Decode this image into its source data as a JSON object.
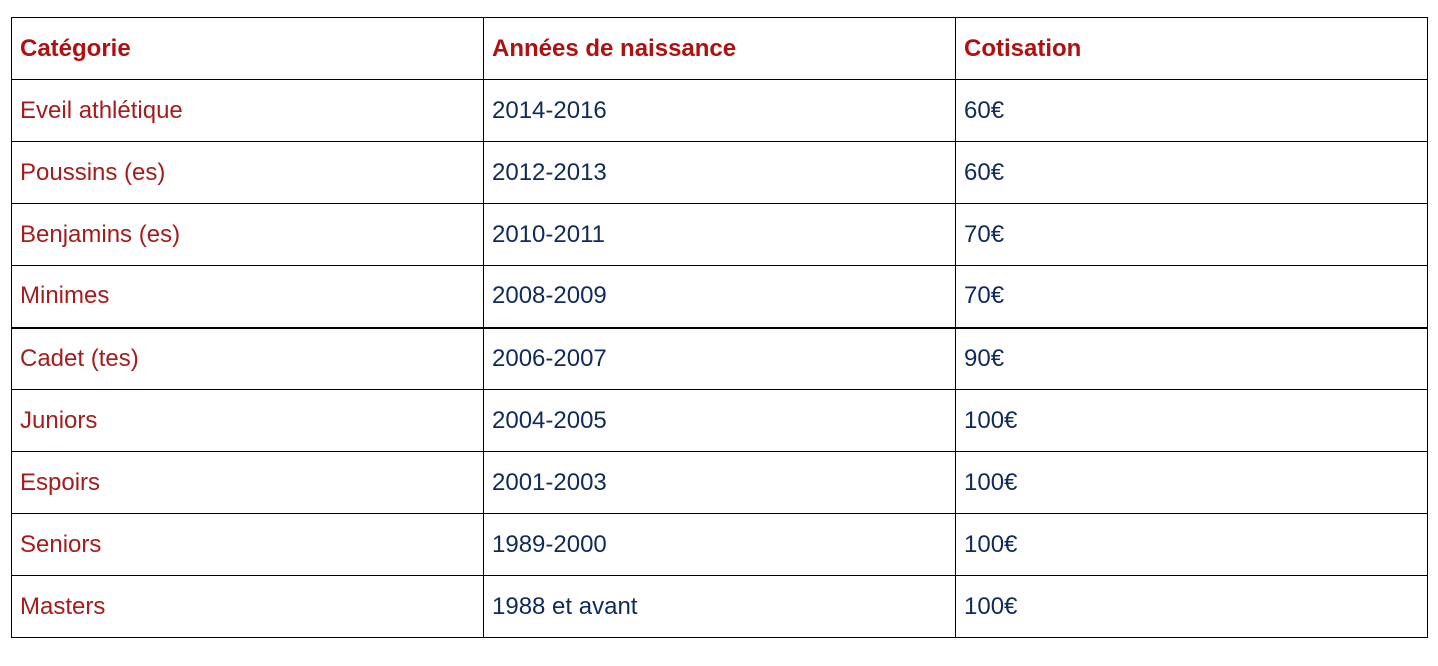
{
  "table": {
    "headers": {
      "category": "Catégorie",
      "birth_years": "Années de naissance",
      "fee": "Cotisation"
    },
    "rows": [
      {
        "category": "Eveil athlétique",
        "birth_years": "2014-2016",
        "fee": "60€"
      },
      {
        "category": "Poussins (es)",
        "birth_years": "2012-2013",
        "fee": "60€"
      },
      {
        "category": "Benjamins (es)",
        "birth_years": "2010-2011",
        "fee": "70€"
      },
      {
        "category": "Minimes",
        "birth_years": "2008-2009",
        "fee": "70€"
      },
      {
        "category": "Cadet (tes)",
        "birth_years": "2006-2007",
        "fee": "90€"
      },
      {
        "category": "Juniors",
        "birth_years": "2004-2005",
        "fee": "100€"
      },
      {
        "category": "Espoirs",
        "birth_years": "2001-2003",
        "fee": "100€"
      },
      {
        "category": "Seniors",
        "birth_years": "1989-2000",
        "fee": "100€"
      },
      {
        "category": "Masters",
        "birth_years": "1988 et avant",
        "fee": "100€"
      }
    ]
  },
  "colors": {
    "header_text": "#b01010",
    "category_text": "#a51c1c",
    "value_text": "#0f2a5c",
    "border": "#000000"
  }
}
